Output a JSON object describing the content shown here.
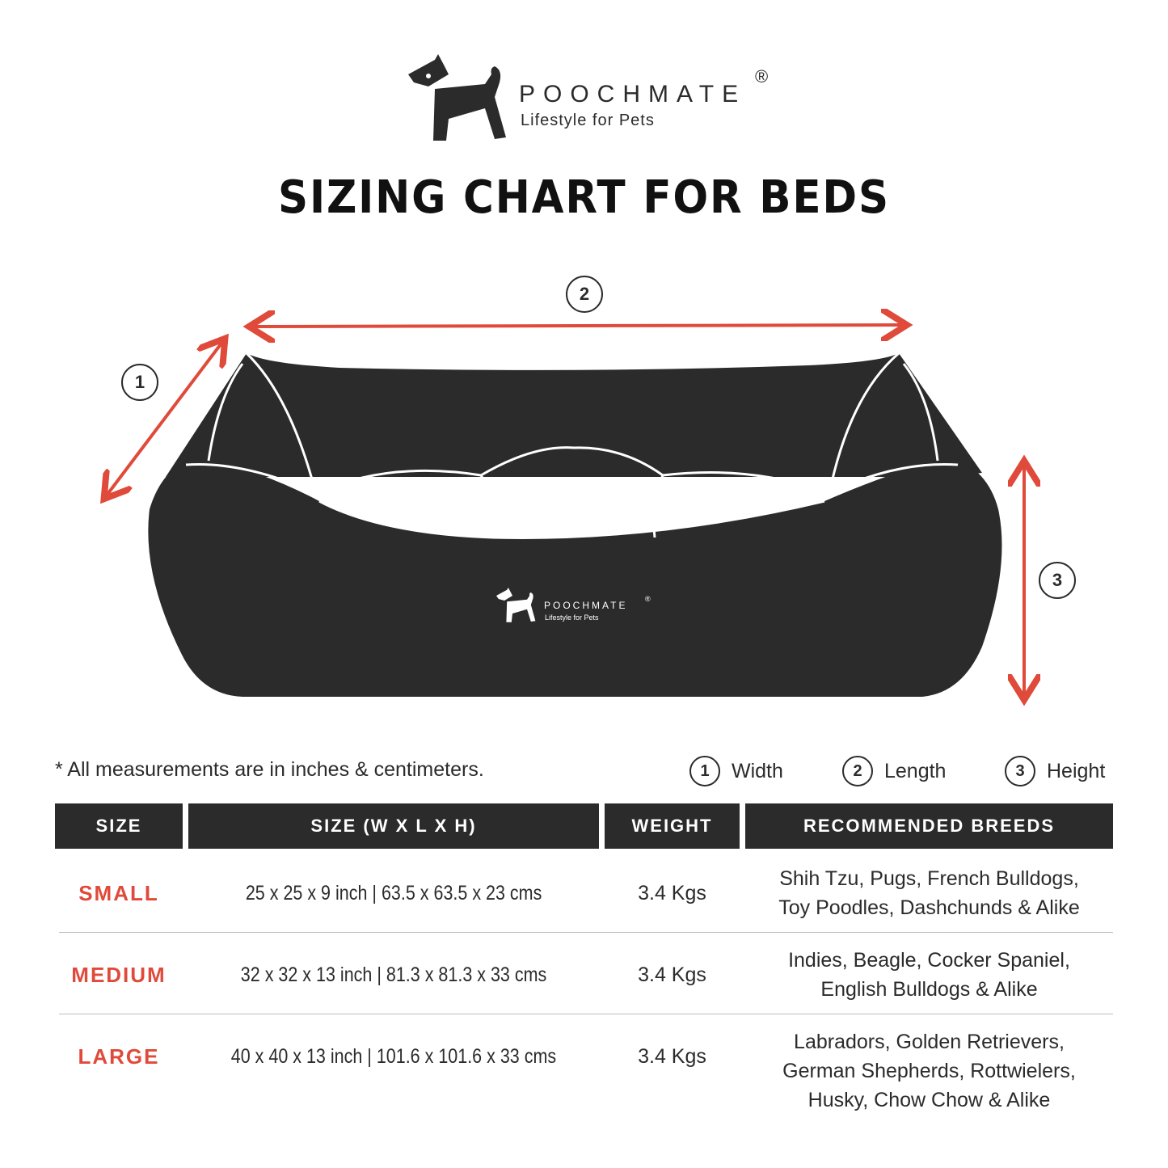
{
  "brand": {
    "name": "POOCHMATE",
    "registered": "®",
    "tagline": "Lifestyle for Pets"
  },
  "title": "SIZING CHART FOR BEDS",
  "colors": {
    "dark": "#2b2b2b",
    "accent": "#e04a3a"
  },
  "diagram": {
    "markers": [
      "1",
      "2",
      "3"
    ],
    "bed_logo": {
      "name": "POOCHMATE",
      "registered": "®",
      "tagline": "Lifestyle for Pets"
    }
  },
  "note": "* All measurements are in inches & centimeters.",
  "legend": [
    {
      "num": "1",
      "label": "Width"
    },
    {
      "num": "2",
      "label": "Length"
    },
    {
      "num": "3",
      "label": "Height"
    }
  ],
  "table": {
    "headers": [
      "SIZE",
      "SIZE (W X L X H)",
      "WEIGHT",
      "RECOMMENDED BREEDS"
    ],
    "rows": [
      {
        "size": "SMALL",
        "dims": "25 x  25 x 9 inch  |  63.5 x 63.5 x 23 cms",
        "weight": "3.4 Kgs",
        "breeds": [
          "Shih Tzu, Pugs, French Bulldogs,",
          "Toy Poodles, Dashchunds & Alike"
        ]
      },
      {
        "size": "MEDIUM",
        "dims": "32 x 32 x 13 inch  |  81.3 x 81.3 x 33 cms",
        "weight": "3.4 Kgs",
        "breeds": [
          "Indies, Beagle, Cocker Spaniel,",
          "English Bulldogs & Alike"
        ]
      },
      {
        "size": "LARGE",
        "dims": "40 x 40 x 13 inch  |  101.6 x 101.6 x 33 cms",
        "weight": "3.4 Kgs",
        "breeds": [
          "Labradors, Golden Retrievers,",
          "German Shepherds, Rottwielers,",
          "Husky, Chow Chow & Alike"
        ]
      }
    ]
  }
}
